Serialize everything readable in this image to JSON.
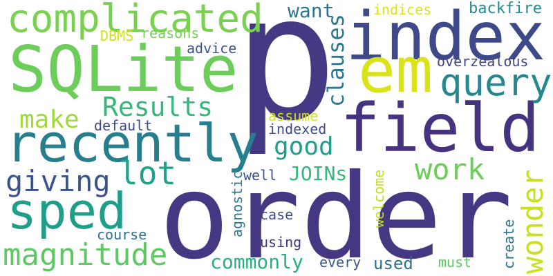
{
  "words": {
    "p": {
      "text": "p",
      "color": "#443983"
    },
    "order": {
      "text": "order",
      "color": "#453781"
    },
    "index": {
      "text": "index",
      "color": "#3e4989"
    },
    "field": {
      "text": "field",
      "color": "#46337f"
    },
    "em": {
      "text": "em",
      "color": "#dae319"
    },
    "SQLite": {
      "text": "SQLite",
      "color": "#6ccd5a"
    },
    "recently": {
      "text": "recently",
      "color": "#277f8e"
    },
    "complicated": {
      "text": "complicated",
      "color": "#7ad151"
    },
    "sped": {
      "text": "sped",
      "color": "#1f9e89"
    },
    "query": {
      "text": "query",
      "color": "#23898e"
    },
    "magnitude": {
      "text": "magnitude",
      "color": "#5ec962"
    },
    "Results": {
      "text": "Results",
      "color": "#35b779"
    },
    "giving": {
      "text": "giving",
      "color": "#3b528b"
    },
    "work": {
      "text": "work",
      "color": "#6ccd5a"
    },
    "lot": {
      "text": "lot",
      "color": "#1fa088"
    },
    "wonder": {
      "text": "wonder",
      "color": "#c8e020"
    },
    "good": {
      "text": "good",
      "color": "#1f9e89"
    },
    "make": {
      "text": "make",
      "color": "#a0da39"
    },
    "clauses": {
      "text": "clauses",
      "color": "#2a788e"
    },
    "want": {
      "text": "want",
      "color": "#2c728e"
    },
    "commonly": {
      "text": "commonly",
      "color": "#29af7f"
    },
    "JOINs": {
      "text": "JOINs",
      "color": "#35b779"
    },
    "backfire": {
      "text": "backfire",
      "color": "#228c8d"
    },
    "overzealous": {
      "text": "overzealous",
      "color": "#414487"
    },
    "indices": {
      "text": "indices",
      "color": "#dde318"
    },
    "reasons": {
      "text": "reasons",
      "color": "#73d056"
    },
    "DBMS": {
      "text": "DBMS",
      "color": "#d0e11c"
    },
    "advice": {
      "text": "advice",
      "color": "#3b528b"
    },
    "default": {
      "text": "default",
      "color": "#3e4989"
    },
    "indexed": {
      "text": "indexed",
      "color": "#3e4c8a"
    },
    "assume": {
      "text": "assume",
      "color": "#d2e21b"
    },
    "well": {
      "text": "well",
      "color": "#3b528b"
    },
    "agnostic": {
      "text": "agnostic",
      "color": "#2a778e"
    },
    "welcome": {
      "text": "welcome",
      "color": "#c2df23"
    },
    "case": {
      "text": "case",
      "color": "#3e4c8a"
    },
    "course": {
      "text": "course",
      "color": "#2d708e"
    },
    "using": {
      "text": "using",
      "color": "#453781"
    },
    "used": {
      "text": "used",
      "color": "#2c728e"
    },
    "every": {
      "text": "every",
      "color": "#39568c"
    },
    "must": {
      "text": "must",
      "color": "#5ec962"
    },
    "create": {
      "text": "create",
      "color": "#2d718e"
    }
  }
}
